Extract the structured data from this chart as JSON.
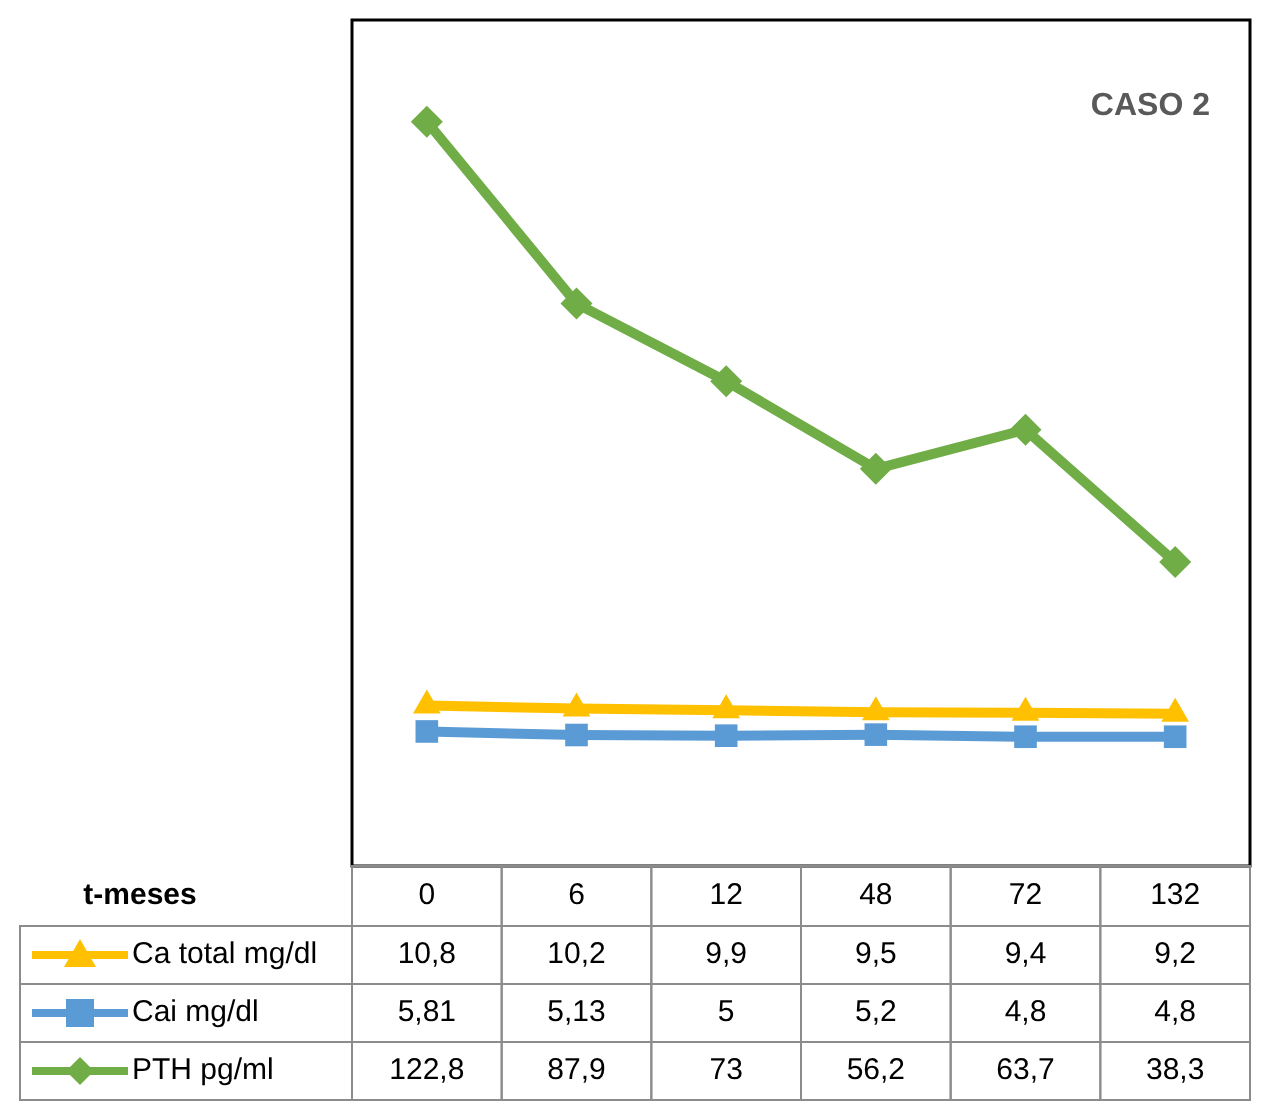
{
  "chart_data": {
    "type": "line",
    "title": "CASO 2",
    "annotations": [
      "t-meses"
    ],
    "categories": [
      "0",
      "6",
      "12",
      "48",
      "72",
      "132"
    ],
    "legend": "bottom left",
    "series": [
      {
        "name": "Ca total mg/dl",
        "color": "#ffc000",
        "marker": "triangle",
        "values": [
          10.8,
          10.2,
          9.9,
          9.5,
          9.4,
          9.2
        ],
        "value_labels": [
          "10,8",
          "10,2",
          "9,9",
          "9,5",
          "9,4",
          "9,2"
        ]
      },
      {
        "name": "Cai mg/dl",
        "color": "#5b9bd5",
        "marker": "square",
        "values": [
          5.81,
          5.13,
          5,
          5.2,
          4.8,
          4.8
        ],
        "value_labels": [
          "5,81",
          "5,13",
          "5",
          "5,2",
          "4,8",
          "4,8"
        ]
      },
      {
        "name": "PTH pg/ml",
        "color": "#70ad47",
        "marker": "diamond",
        "values": [
          122.8,
          87.9,
          73,
          56.2,
          63.7,
          38.3
        ],
        "value_labels": [
          "122,8",
          "87,9",
          "73",
          "56,2",
          "63,7",
          "38,3"
        ]
      }
    ]
  }
}
